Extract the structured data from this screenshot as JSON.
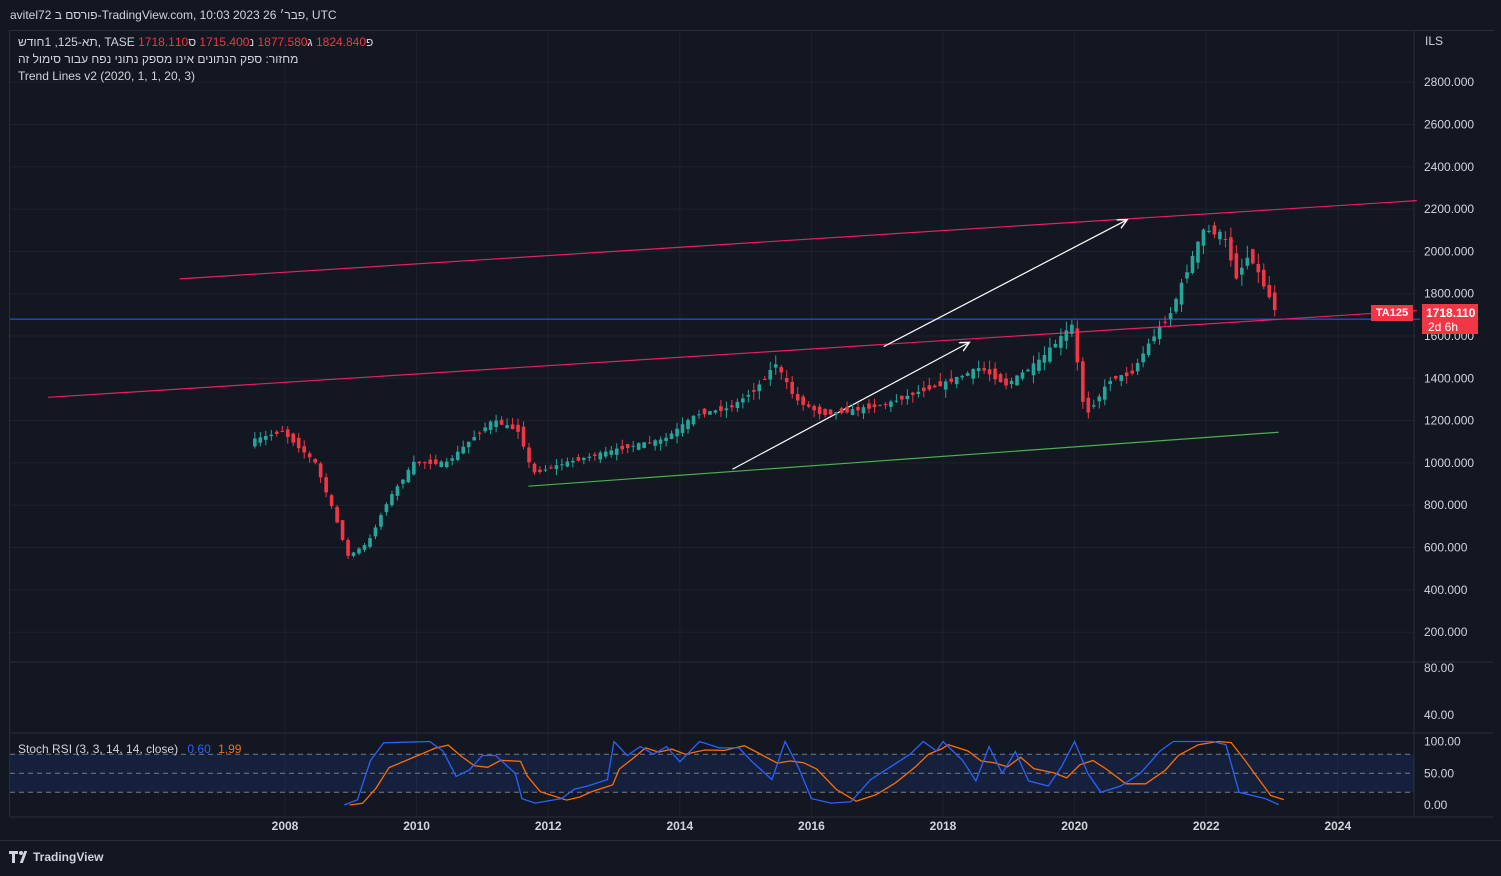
{
  "header": {
    "publish_line": "avitel72 פורסם ב-TradingView.com, 10:03 2023 פבר׳ 26, UTC"
  },
  "legend": {
    "symbol_line": "תא-125, 1חודש, TASE",
    "open_label": "פ",
    "open_value": "1824.840",
    "high_label": "ג",
    "high_value": "1877.580",
    "low_label": "נ",
    "low_value": "1715.400",
    "close_label": "ס",
    "close_value": "1718.110",
    "volume_line": "מחזור: ספק הנתונים אינו מספק נתוני נפח עבור סימול זה",
    "indicator_line": "Trend Lines v2 (2020, 1, 1, 20, 3)"
  },
  "price_axis": {
    "currency": "ILS",
    "labels": [
      "2800.000",
      "2600.000",
      "2400.000",
      "2200.000",
      "2000.000",
      "1800.000",
      "1600.000",
      "1400.000",
      "1200.000",
      "1000.000",
      "800.000",
      "600.000",
      "400.000",
      "200.000"
    ],
    "volume_labels": [
      "80.00",
      "40.00"
    ],
    "stoch_labels": [
      "100.00",
      "50.00",
      "0.00"
    ]
  },
  "time_axis": {
    "labels": [
      "2008",
      "2010",
      "2012",
      "2014",
      "2016",
      "2018",
      "2020",
      "2022",
      "2024"
    ]
  },
  "price_tag": {
    "symbol": "TA125",
    "price": "1718.110",
    "countdown": "2d 6h"
  },
  "stoch": {
    "label": "Stoch RSI (3, 3, 14, 14, close)",
    "k_value": "0.60",
    "d_value": "1.99"
  },
  "footer": {
    "brand": "TradingView"
  },
  "colors": {
    "background": "#131722",
    "up": "#26a69a",
    "down": "#f23645",
    "trend_red": "#e91e63",
    "trend_green": "#4caf50",
    "horizontal_blue": "#2962ff",
    "stoch_k": "#2962ff",
    "stoch_d": "#ff6d00"
  },
  "chart_data": {
    "type": "candlestick",
    "symbol": "TA125",
    "exchange": "TASE",
    "interval": "1 month",
    "y_range": [
      0,
      2900
    ],
    "x_range": [
      2007.3,
      2025.2
    ],
    "last_candle": {
      "open": 1824.84,
      "high": 1877.58,
      "low": 1715.4,
      "close": 1718.11
    },
    "approximate_closes": [
      [
        2007.5,
        1100
      ],
      [
        2008.0,
        1150
      ],
      [
        2008.5,
        1000
      ],
      [
        2008.8,
        750
      ],
      [
        2009.0,
        560
      ],
      [
        2009.3,
        620
      ],
      [
        2009.6,
        820
      ],
      [
        2010.0,
        1000
      ],
      [
        2010.5,
        1000
      ],
      [
        2010.9,
        1120
      ],
      [
        2011.2,
        1200
      ],
      [
        2011.6,
        1150
      ],
      [
        2011.8,
        950
      ],
      [
        2012.3,
        1000
      ],
      [
        2012.8,
        1040
      ],
      [
        2013.3,
        1080
      ],
      [
        2013.8,
        1110
      ],
      [
        2014.3,
        1230
      ],
      [
        2014.8,
        1260
      ],
      [
        2015.2,
        1350
      ],
      [
        2015.5,
        1470
      ],
      [
        2015.8,
        1300
      ],
      [
        2016.2,
        1230
      ],
      [
        2016.7,
        1250
      ],
      [
        2017.2,
        1280
      ],
      [
        2017.7,
        1340
      ],
      [
        2018.1,
        1380
      ],
      [
        2018.6,
        1450
      ],
      [
        2019.0,
        1370
      ],
      [
        2019.5,
        1480
      ],
      [
        2020.0,
        1650
      ],
      [
        2020.2,
        1220
      ],
      [
        2020.6,
        1400
      ],
      [
        2020.9,
        1420
      ],
      [
        2021.2,
        1580
      ],
      [
        2021.5,
        1710
      ],
      [
        2021.8,
        1950
      ],
      [
        2022.0,
        2100
      ],
      [
        2022.3,
        2080
      ],
      [
        2022.5,
        1880
      ],
      [
        2022.7,
        1990
      ],
      [
        2022.9,
        1850
      ],
      [
        2023.1,
        1718
      ]
    ],
    "stoch_rsi": {
      "range": [
        0,
        100
      ],
      "levels": [
        80,
        50,
        20
      ],
      "k_last": 0.6,
      "d_last": 1.99
    }
  }
}
